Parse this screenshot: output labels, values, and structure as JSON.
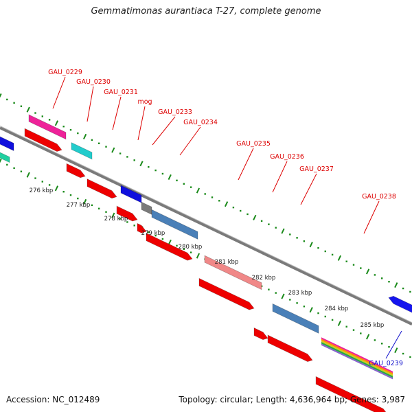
{
  "title": "Gemmatimonas aurantiaca T-27, complete genome",
  "footer": {
    "accession": "Accession: NC_012489",
    "topology": "Topology: circular; Length: 4,636,964 bp; Genes: 3,987"
  },
  "colors": {
    "cds_red": "#ee0000",
    "label_red": "#dd0000",
    "label_blue": "#1010cc",
    "backbone": "#7a7a7a",
    "tick_green": "#1a8a1a"
  },
  "kbp_ticks": [
    "276 kbp",
    "277 kbp",
    "278 kbp",
    "279 kbp",
    "280 kbp",
    "281 kbp",
    "282 kbp",
    "283 kbp",
    "284 kbp",
    "285 kbp"
  ],
  "gene_labels": [
    {
      "name": "GAU_0229",
      "color": "red"
    },
    {
      "name": "GAU_0230",
      "color": "red"
    },
    {
      "name": "GAU_0231",
      "color": "red"
    },
    {
      "name": "mog",
      "color": "red"
    },
    {
      "name": "GAU_0233",
      "color": "red"
    },
    {
      "name": "GAU_0234",
      "color": "red"
    },
    {
      "name": "GAU_0235",
      "color": "red"
    },
    {
      "name": "GAU_0236",
      "color": "red"
    },
    {
      "name": "GAU_0237",
      "color": "red"
    },
    {
      "name": "GAU_0238",
      "color": "red"
    },
    {
      "name": "GAU_0239",
      "color": "blue"
    }
  ]
}
